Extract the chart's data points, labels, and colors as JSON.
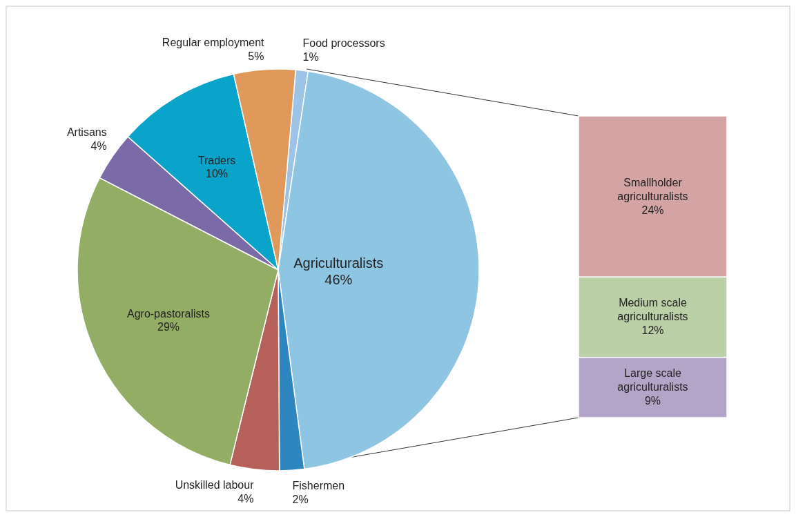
{
  "chart_data": [
    {
      "type": "pie",
      "categories": [
        "Food processors",
        "Agriculturalists",
        "Fishermen",
        "Unskilled labour",
        "Agro-pastoralists",
        "Artisans",
        "Traders",
        "Regular employment"
      ],
      "values": [
        1,
        46,
        2,
        4,
        29,
        4,
        10,
        5
      ],
      "value_labels": [
        "1%",
        "46%",
        "2%",
        "4%",
        "29%",
        "4%",
        "10%",
        "5%"
      ],
      "colors": [
        "#9dc3e6",
        "#8ec5e3",
        "#2e86c1",
        "#b5615a",
        "#93ad64",
        "#7b6aa8",
        "#0aa3c9",
        "#e0995a"
      ]
    },
    {
      "type": "bar",
      "stacked": true,
      "categories": [
        null
      ],
      "series": [
        {
          "name": "Large scale agriculturalists",
          "color": "#b3a5c8",
          "values": [
            9
          ],
          "value_labels": [
            "9%"
          ]
        },
        {
          "name": "Medium scale agriculturalists",
          "color": "#bcd0a8",
          "values": [
            12
          ],
          "value_labels": [
            "12%"
          ]
        },
        {
          "name": "Smallholder agriculturalists",
          "color": "#d4a3a3",
          "values": [
            24
          ],
          "value_labels": [
            "24%"
          ]
        }
      ]
    }
  ]
}
